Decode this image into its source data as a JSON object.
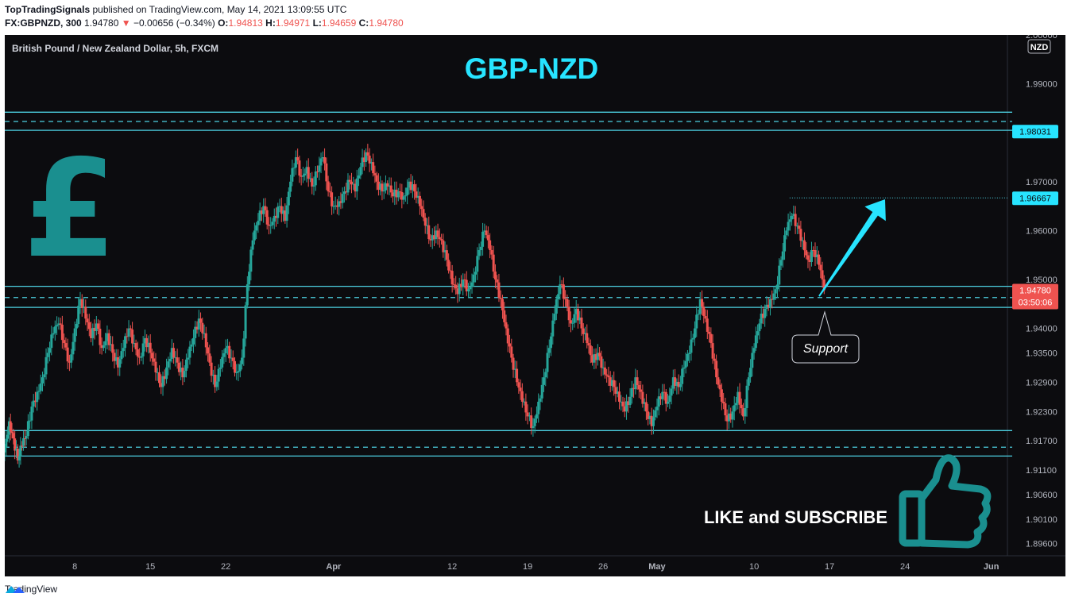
{
  "header": {
    "publisher": "TopTradingSignals",
    "published_text": "published on TradingView.com, May 14, 2021 13:09:55 UTC",
    "symbol": "FX:GBPNZD, 300",
    "last": "1.94780",
    "change_arrow": "▼",
    "change": "−0.00656 (−0.34%)",
    "o_label": "O:",
    "o": "1.94813",
    "h_label": "H:",
    "h": "1.94971",
    "l_label": "L:",
    "l": "1.94659",
    "c_label": "C:",
    "c": "1.94780"
  },
  "footer": {
    "brand": "TradingView",
    "logo_icon": "tradingview-logo-icon"
  },
  "colors": {
    "up": "#26a69a",
    "down": "#ef5350",
    "zone": "#4dd0e1",
    "cyan": "#27e4ff",
    "teal": "#1a8f8f",
    "background": "#0c0c0f"
  },
  "chart_data": {
    "type": "candlestick",
    "instrument_title": "British Pound / New Zealand Dollar, 5h, FXCM",
    "title": "GBP-NZD",
    "currency_badge": "NZD",
    "ylim": [
      1.8935,
      2.0
    ],
    "y_ticks": [
      "1.99000",
      "1.97000",
      "1.96000",
      "1.95000",
      "1.94000",
      "1.93500",
      "1.92900",
      "1.92300",
      "1.91700",
      "1.91100",
      "1.90600",
      "1.90100",
      "1.89600"
    ],
    "y_top_tick": "2.00000",
    "x_ticks": [
      {
        "label": "8",
        "day": 8
      },
      {
        "label": "15",
        "day": 15
      },
      {
        "label": "22",
        "day": 22
      },
      {
        "label": "Apr",
        "day": 32
      },
      {
        "label": "12",
        "day": 43
      },
      {
        "label": "19",
        "day": 50
      },
      {
        "label": "26",
        "day": 57
      },
      {
        "label": "May",
        "day": 62
      },
      {
        "label": "10",
        "day": 71
      },
      {
        "label": "17",
        "day": 78
      },
      {
        "label": "24",
        "day": 85
      },
      {
        "label": "Jun",
        "day": 93
      }
    ],
    "x_range_days": [
      1.5,
      94.5
    ],
    "price_labels": [
      {
        "text": "1.98031",
        "value": 1.98031
      },
      {
        "text": "1.96667",
        "value": 1.96667
      }
    ],
    "last_price": {
      "text": "1.94780",
      "value": 1.9478,
      "countdown": "03:50:06"
    },
    "high_marker": {
      "value": 1.96667,
      "from_day": 74.3
    },
    "zones": [
      {
        "name": "resistance",
        "top": 1.9842,
        "bottom": 1.9805,
        "mid": 1.9823
      },
      {
        "name": "support",
        "top": 1.9486,
        "bottom": 1.9443,
        "mid": 1.9463
      },
      {
        "name": "bottom-support",
        "top": 1.9191,
        "bottom": 1.9139,
        "mid": 1.9157
      }
    ],
    "annotations": {
      "support_label": "Support",
      "cta": "LIKE and SUBSCRIBE",
      "pound_symbol": "£",
      "pound_icon": "pound-sign-icon",
      "thumb_icon": "thumbs-up-icon",
      "arrow_icon": "up-arrow-icon"
    },
    "series": [
      [
        1.5,
        1.9156
      ],
      [
        1.9,
        1.921
      ],
      [
        2.3,
        1.9175
      ],
      [
        2.7,
        1.913
      ],
      [
        3.1,
        1.916
      ],
      [
        3.5,
        1.918
      ],
      [
        4.0,
        1.924
      ],
      [
        4.5,
        1.927
      ],
      [
        5.0,
        1.93
      ],
      [
        5.5,
        1.935
      ],
      [
        6.0,
        1.939
      ],
      [
        6.5,
        1.941
      ],
      [
        7.0,
        1.937
      ],
      [
        7.5,
        1.933
      ],
      [
        8.0,
        1.94
      ],
      [
        8.5,
        1.946
      ],
      [
        9.0,
        1.942
      ],
      [
        9.5,
        1.938
      ],
      [
        10.0,
        1.941
      ],
      [
        10.5,
        1.936
      ],
      [
        11.0,
        1.939
      ],
      [
        11.5,
        1.935
      ],
      [
        12.0,
        1.932
      ],
      [
        12.5,
        1.936
      ],
      [
        13.0,
        1.94
      ],
      [
        13.5,
        1.937
      ],
      [
        14.0,
        1.934
      ],
      [
        14.5,
        1.938
      ],
      [
        15.0,
        1.935
      ],
      [
        15.5,
        1.931
      ],
      [
        16.0,
        1.928
      ],
      [
        16.5,
        1.932
      ],
      [
        17.0,
        1.936
      ],
      [
        17.5,
        1.933
      ],
      [
        18.0,
        1.93
      ],
      [
        18.5,
        1.934
      ],
      [
        19.0,
        1.938
      ],
      [
        19.5,
        1.942
      ],
      [
        20.0,
        1.939
      ],
      [
        20.5,
        1.933
      ],
      [
        21.0,
        1.928
      ],
      [
        21.5,
        1.932
      ],
      [
        22.0,
        1.936
      ],
      [
        22.5,
        1.934
      ],
      [
        23.0,
        1.931
      ],
      [
        23.5,
        1.934
      ],
      [
        24.0,
        1.949
      ],
      [
        24.5,
        1.958
      ],
      [
        25.0,
        1.962
      ],
      [
        25.5,
        1.965
      ],
      [
        26.0,
        1.961
      ],
      [
        26.5,
        1.963
      ],
      [
        27.0,
        1.965
      ],
      [
        27.5,
        1.962
      ],
      [
        28.0,
        1.97
      ],
      [
        28.5,
        1.975
      ],
      [
        29.0,
        1.971
      ],
      [
        29.5,
        1.973
      ],
      [
        30.0,
        1.969
      ],
      [
        30.5,
        1.972
      ],
      [
        31.0,
        1.975
      ],
      [
        31.5,
        1.968
      ],
      [
        32.0,
        1.965
      ],
      [
        32.5,
        1.966
      ],
      [
        33.0,
        1.968
      ],
      [
        33.5,
        1.97
      ],
      [
        34.0,
        1.968
      ],
      [
        34.5,
        1.973
      ],
      [
        35.0,
        1.976
      ],
      [
        35.5,
        1.974
      ],
      [
        36.0,
        1.97
      ],
      [
        36.5,
        1.968
      ],
      [
        37.0,
        1.969
      ],
      [
        37.5,
        1.967
      ],
      [
        38.0,
        1.968
      ],
      [
        38.5,
        1.967
      ],
      [
        39.0,
        1.97
      ],
      [
        39.5,
        1.968
      ],
      [
        40.0,
        1.965
      ],
      [
        40.5,
        1.961
      ],
      [
        41.0,
        1.958
      ],
      [
        41.5,
        1.96
      ],
      [
        42.0,
        1.958
      ],
      [
        42.5,
        1.954
      ],
      [
        43.0,
        1.949
      ],
      [
        43.5,
        1.947
      ],
      [
        44.0,
        1.95
      ],
      [
        44.5,
        1.948
      ],
      [
        45.0,
        1.951
      ],
      [
        45.5,
        1.956
      ],
      [
        46.0,
        1.96
      ],
      [
        46.5,
        1.956
      ],
      [
        47.0,
        1.95
      ],
      [
        47.5,
        1.946
      ],
      [
        48.0,
        1.94
      ],
      [
        48.5,
        1.934
      ],
      [
        49.0,
        1.929
      ],
      [
        49.5,
        1.925
      ],
      [
        50.0,
        1.922
      ],
      [
        50.5,
        1.92
      ],
      [
        51.0,
        1.925
      ],
      [
        51.5,
        1.93
      ],
      [
        52.0,
        1.936
      ],
      [
        52.5,
        1.943
      ],
      [
        53.0,
        1.949
      ],
      [
        53.5,
        1.946
      ],
      [
        54.0,
        1.941
      ],
      [
        54.5,
        1.944
      ],
      [
        55.0,
        1.94
      ],
      [
        55.5,
        1.937
      ],
      [
        56.0,
        1.933
      ],
      [
        56.5,
        1.935
      ],
      [
        57.0,
        1.932
      ],
      [
        57.5,
        1.93
      ],
      [
        58.0,
        1.928
      ],
      [
        58.5,
        1.925
      ],
      [
        59.0,
        1.923
      ],
      [
        59.5,
        1.926
      ],
      [
        60.0,
        1.93
      ],
      [
        60.5,
        1.927
      ],
      [
        61.0,
        1.923
      ],
      [
        61.5,
        1.92
      ],
      [
        62.0,
        1.924
      ],
      [
        62.5,
        1.927
      ],
      [
        63.0,
        1.925
      ],
      [
        63.5,
        1.93
      ],
      [
        64.0,
        1.928
      ],
      [
        64.5,
        1.932
      ],
      [
        65.0,
        1.935
      ],
      [
        65.5,
        1.94
      ],
      [
        66.0,
        1.946
      ],
      [
        66.5,
        1.942
      ],
      [
        67.0,
        1.937
      ],
      [
        67.5,
        1.93
      ],
      [
        68.0,
        1.925
      ],
      [
        68.5,
        1.921
      ],
      [
        69.0,
        1.923
      ],
      [
        69.5,
        1.927
      ],
      [
        70.0,
        1.922
      ],
      [
        70.5,
        1.93
      ],
      [
        71.0,
        1.936
      ],
      [
        71.5,
        1.941
      ],
      [
        72.0,
        1.944
      ],
      [
        72.5,
        1.946
      ],
      [
        73.0,
        1.948
      ],
      [
        73.5,
        1.954
      ],
      [
        74.0,
        1.96
      ],
      [
        74.5,
        1.963
      ],
      [
        75.0,
        1.961
      ],
      [
        75.5,
        1.958
      ],
      [
        76.0,
        1.954
      ],
      [
        76.5,
        1.956
      ],
      [
        77.0,
        1.953
      ],
      [
        77.5,
        1.9478
      ]
    ]
  }
}
